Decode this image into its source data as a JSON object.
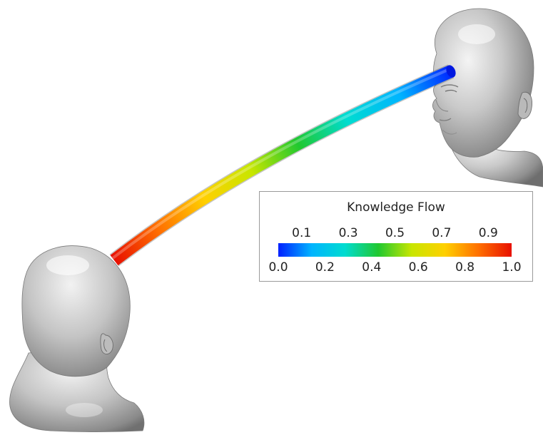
{
  "figure": {
    "left_figure": "head-bust",
    "right_figure": "head-bust",
    "connector": "tube"
  },
  "legend": {
    "title": "Knowledge Flow",
    "upper_ticks": [
      "0.1",
      "0.3",
      "0.5",
      "0.7",
      "0.9"
    ],
    "lower_ticks": [
      "0.0",
      "0.2",
      "0.4",
      "0.6",
      "0.8",
      "1.0"
    ],
    "range": [
      0.0,
      1.0
    ],
    "colormap": [
      "#0020ff",
      "#00b4ff",
      "#00dcd0",
      "#20c830",
      "#c8e600",
      "#ffd000",
      "#ff7000",
      "#e81000"
    ]
  }
}
